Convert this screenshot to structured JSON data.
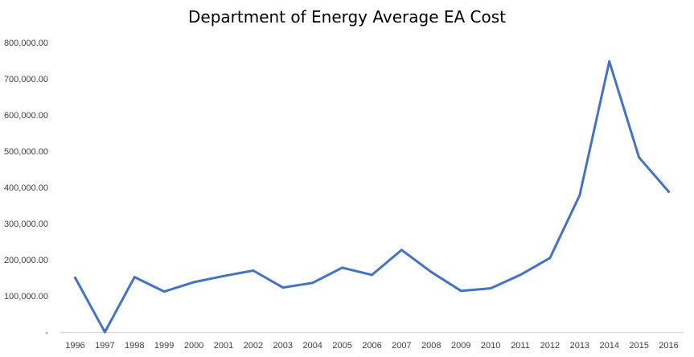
{
  "chart_data": {
    "type": "line",
    "title": "Department of Energy Average EA Cost",
    "xlabel": "",
    "ylabel": "",
    "ylim": [
      0,
      800000
    ],
    "y_ticks": [
      0,
      100000,
      200000,
      300000,
      400000,
      500000,
      600000,
      700000,
      800000
    ],
    "y_tick_labels": [
      "-",
      "100,000.00",
      "200,000.00",
      "300,000.00",
      "400,000.00",
      "500,000.00",
      "600,000.00",
      "700,000.00",
      "800,000.00"
    ],
    "grid": false,
    "legend": "none",
    "line_color": "#4472C4",
    "categories": [
      "1996",
      "1997",
      "1998",
      "1999",
      "2000",
      "2001",
      "2002",
      "2003",
      "2004",
      "2005",
      "2006",
      "2007",
      "2008",
      "2009",
      "2010",
      "2011",
      "2012",
      "2013",
      "2014",
      "2015",
      "2016"
    ],
    "series": [
      {
        "values": [
          150000,
          0,
          152000,
          112000,
          138000,
          155000,
          170000,
          123000,
          136000,
          178000,
          158000,
          227000,
          166000,
          114000,
          121000,
          158000,
          205000,
          378000,
          748000,
          483000,
          388000
        ]
      }
    ]
  }
}
